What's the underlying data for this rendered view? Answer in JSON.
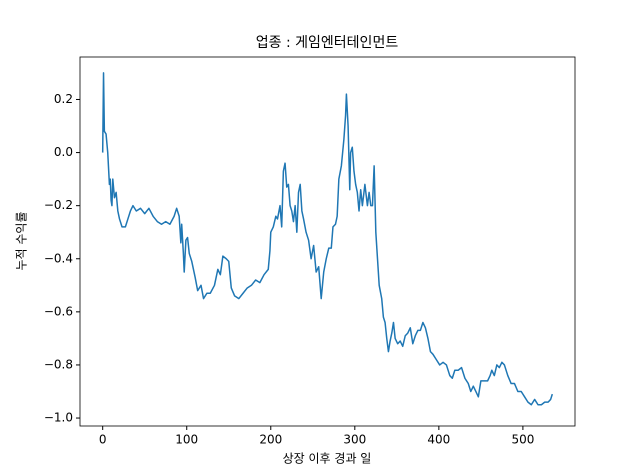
{
  "chart_data": {
    "type": "line",
    "title": "업종 : 게임엔터테인먼트",
    "xlabel": "상장 이후 경과 일",
    "ylabel": "누적 수익률",
    "color": "#1f77b4",
    "x": [
      0,
      1,
      2,
      4,
      6,
      8,
      9,
      10,
      11,
      12,
      14,
      16,
      18,
      20,
      23,
      27,
      30,
      33,
      36,
      40,
      45,
      50,
      55,
      60,
      65,
      70,
      75,
      80,
      85,
      88,
      91,
      93,
      94,
      96,
      97,
      99,
      101,
      103,
      106,
      110,
      113,
      117,
      120,
      124,
      128,
      133,
      137,
      140,
      143,
      147,
      150,
      153,
      157,
      162,
      167,
      172,
      177,
      182,
      187,
      192,
      197,
      199,
      200,
      203,
      206,
      208,
      211,
      213,
      215,
      217,
      219,
      221,
      223,
      225,
      227,
      229,
      231,
      233,
      235,
      237,
      239,
      242,
      245,
      248,
      251,
      254,
      257,
      260,
      263,
      266,
      269,
      272,
      274,
      277,
      279,
      281,
      284,
      287,
      289,
      290,
      292,
      294,
      295,
      297,
      299,
      301,
      303,
      305,
      307,
      309,
      312,
      315,
      317,
      319,
      321,
      323,
      325,
      327,
      329,
      332,
      334,
      336,
      338,
      340,
      342,
      344,
      346,
      348,
      351,
      354,
      357,
      360,
      363,
      366,
      369,
      372,
      375,
      378,
      381,
      384,
      387,
      390,
      393,
      397,
      401,
      405,
      409,
      413,
      416,
      419,
      423,
      427,
      431,
      435,
      438,
      441,
      444,
      447,
      450,
      454,
      458,
      461,
      463,
      466,
      469,
      472,
      475,
      478,
      482,
      486,
      490,
      494,
      498,
      502,
      506,
      510,
      514,
      518,
      522,
      526,
      530,
      533,
      535
    ],
    "values": [
      0,
      0.3,
      0.08,
      0.07,
      0,
      -0.12,
      -0.1,
      -0.18,
      -0.2,
      -0.1,
      -0.17,
      -0.15,
      -0.22,
      -0.25,
      -0.28,
      -0.28,
      -0.25,
      -0.22,
      -0.2,
      -0.22,
      -0.21,
      -0.23,
      -0.21,
      -0.24,
      -0.26,
      -0.27,
      -0.26,
      -0.27,
      -0.24,
      -0.21,
      -0.24,
      -0.34,
      -0.27,
      -0.38,
      -0.45,
      -0.33,
      -0.32,
      -0.38,
      -0.41,
      -0.47,
      -0.52,
      -0.5,
      -0.55,
      -0.53,
      -0.53,
      -0.5,
      -0.44,
      -0.46,
      -0.39,
      -0.4,
      -0.41,
      -0.51,
      -0.54,
      -0.55,
      -0.53,
      -0.51,
      -0.5,
      -0.48,
      -0.49,
      -0.46,
      -0.44,
      -0.37,
      -0.3,
      -0.28,
      -0.24,
      -0.25,
      -0.2,
      -0.28,
      -0.07,
      -0.04,
      -0.13,
      -0.12,
      -0.2,
      -0.22,
      -0.26,
      -0.2,
      -0.3,
      -0.15,
      -0.12,
      -0.22,
      -0.25,
      -0.3,
      -0.33,
      -0.4,
      -0.35,
      -0.45,
      -0.43,
      -0.55,
      -0.45,
      -0.4,
      -0.36,
      -0.36,
      -0.28,
      -0.27,
      -0.24,
      -0.1,
      -0.05,
      0.05,
      0.14,
      0.22,
      0.1,
      -0.14,
      0,
      0.02,
      -0.07,
      -0.12,
      -0.15,
      -0.22,
      -0.14,
      -0.2,
      -0.12,
      -0.2,
      -0.15,
      -0.2,
      -0.2,
      -0.05,
      -0.3,
      -0.4,
      -0.5,
      -0.55,
      -0.62,
      -0.64,
      -0.7,
      -0.75,
      -0.71,
      -0.68,
      -0.64,
      -0.7,
      -0.72,
      -0.71,
      -0.73,
      -0.69,
      -0.68,
      -0.66,
      -0.72,
      -0.69,
      -0.67,
      -0.67,
      -0.64,
      -0.66,
      -0.7,
      -0.75,
      -0.76,
      -0.78,
      -0.8,
      -0.79,
      -0.8,
      -0.84,
      -0.85,
      -0.82,
      -0.82,
      -0.81,
      -0.85,
      -0.87,
      -0.9,
      -0.88,
      -0.9,
      -0.92,
      -0.86,
      -0.86,
      -0.86,
      -0.84,
      -0.82,
      -0.84,
      -0.8,
      -0.81,
      -0.79,
      -0.8,
      -0.84,
      -0.87,
      -0.87,
      -0.9,
      -0.9,
      -0.92,
      -0.94,
      -0.95,
      -0.93,
      -0.95,
      -0.95,
      -0.94,
      -0.94,
      -0.93,
      -0.91
    ],
    "xlim": [
      -27,
      562
    ],
    "ylim": [
      -1.03,
      0.36
    ],
    "xticks": [
      0,
      100,
      200,
      300,
      400,
      500
    ],
    "yticks": [
      {
        "value": -1.0,
        "label": "−1.0"
      },
      {
        "value": -0.8,
        "label": "−0.8"
      },
      {
        "value": -0.6,
        "label": "−0.6"
      },
      {
        "value": -0.4,
        "label": "−0.4"
      },
      {
        "value": -0.2,
        "label": "−0.2"
      },
      {
        "value": 0.0,
        "label": "0.0"
      },
      0.2
    ]
  }
}
